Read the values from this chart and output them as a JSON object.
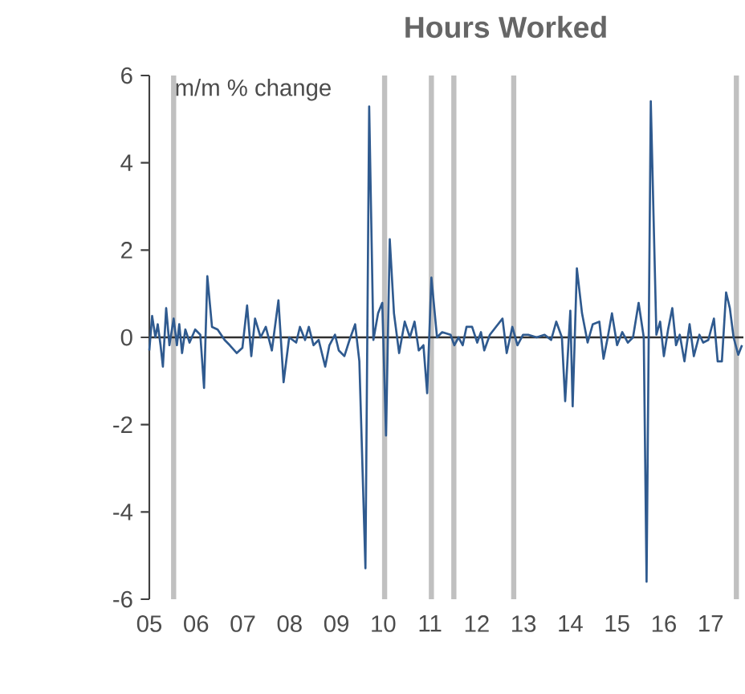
{
  "chart_data": {
    "type": "line",
    "title": "Hours Worked",
    "ylabel": "m/m % change",
    "xlim": [
      2005,
      2017.7
    ],
    "ylim": [
      -6,
      6
    ],
    "yticks": [
      -6,
      -4,
      -2,
      0,
      2,
      4,
      6
    ],
    "xticks": [
      {
        "value": 2005,
        "label": "05"
      },
      {
        "value": 2006,
        "label": "06"
      },
      {
        "value": 2007,
        "label": "07"
      },
      {
        "value": 2008,
        "label": "08"
      },
      {
        "value": 2009,
        "label": "09"
      },
      {
        "value": 2010,
        "label": "10"
      },
      {
        "value": 2011,
        "label": "11"
      },
      {
        "value": 2012,
        "label": "12"
      },
      {
        "value": 2013,
        "label": "13"
      },
      {
        "value": 2014,
        "label": "14"
      },
      {
        "value": 2015,
        "label": "15"
      },
      {
        "value": 2016,
        "label": "16"
      },
      {
        "value": 2017,
        "label": "17"
      }
    ],
    "grid": false,
    "marker": "none",
    "line_style": "solid",
    "ref_lines": [
      {
        "axis": "x",
        "value": 2005.52,
        "color": "#c0c0c0"
      },
      {
        "axis": "x",
        "value": 2010.03,
        "color": "#c0c0c0"
      },
      {
        "axis": "x",
        "value": 2011.03,
        "color": "#c0c0c0"
      },
      {
        "axis": "x",
        "value": 2011.51,
        "color": "#c0c0c0"
      },
      {
        "axis": "x",
        "value": 2012.79,
        "color": "#c0c0c0"
      },
      {
        "axis": "x",
        "value": 2017.55,
        "color": "#c0c0c0"
      },
      {
        "axis": "y",
        "value": 0,
        "color": "#303030"
      }
    ],
    "x": [
      2005.0,
      2005.06,
      2005.13,
      2005.18,
      2005.24,
      2005.29,
      2005.36,
      2005.43,
      2005.52,
      2005.59,
      2005.64,
      2005.7,
      2005.77,
      2005.86,
      2005.98,
      2006.09,
      2006.17,
      2006.24,
      2006.34,
      2006.46,
      2006.61,
      2006.72,
      2006.87,
      2006.99,
      2007.09,
      2007.18,
      2007.26,
      2007.38,
      2007.49,
      2007.62,
      2007.76,
      2007.87,
      2007.99,
      2008.14,
      2008.22,
      2008.33,
      2008.41,
      2008.51,
      2008.62,
      2008.76,
      2008.85,
      2008.97,
      2009.05,
      2009.17,
      2009.28,
      2009.4,
      2009.49,
      2009.62,
      2009.7,
      2009.79,
      2009.89,
      2009.98,
      2010.06,
      2010.14,
      2010.23,
      2010.34,
      2010.46,
      2010.57,
      2010.67,
      2010.76,
      2010.86,
      2010.94,
      2011.03,
      2011.15,
      2011.26,
      2011.44,
      2011.52,
      2011.61,
      2011.7,
      2011.78,
      2011.9,
      2012.01,
      2012.09,
      2012.16,
      2012.28,
      2012.41,
      2012.55,
      2012.64,
      2012.76,
      2012.87,
      2012.99,
      2013.1,
      2013.28,
      2013.45,
      2013.59,
      2013.7,
      2013.82,
      2013.89,
      2014.0,
      2014.05,
      2014.14,
      2014.25,
      2014.37,
      2014.48,
      2014.62,
      2014.71,
      2014.8,
      2014.89,
      2015.0,
      2015.11,
      2015.23,
      2015.34,
      2015.46,
      2015.57,
      2015.63,
      2015.72,
      2015.84,
      2015.92,
      2016.0,
      2016.09,
      2016.18,
      2016.26,
      2016.34,
      2016.44,
      2016.55,
      2016.64,
      2016.76,
      2016.84,
      2016.95,
      2017.07,
      2017.15,
      2017.24,
      2017.33,
      2017.41,
      2017.49,
      2017.59,
      2017.67
    ],
    "series": [
      {
        "color": "#2f5a8f",
        "values": [
          -0.3,
          0.49,
          0,
          0.3,
          -0.18,
          -0.67,
          0.67,
          -0.18,
          0.43,
          -0.18,
          0.3,
          -0.36,
          0.18,
          -0.12,
          0.18,
          0.06,
          -1.16,
          1.4,
          0.24,
          0.18,
          -0.06,
          -0.18,
          -0.36,
          -0.24,
          0.73,
          -0.43,
          0.43,
          0,
          0.24,
          -0.3,
          0.85,
          -1.03,
          0,
          -0.12,
          0.24,
          -0.06,
          0.24,
          -0.18,
          -0.06,
          -0.67,
          -0.18,
          0.06,
          -0.3,
          -0.43,
          -0.06,
          0.3,
          -0.55,
          -5.29,
          5.29,
          -0.06,
          0.55,
          0.79,
          -2.25,
          2.25,
          0.55,
          -0.36,
          0.36,
          0,
          0.36,
          -0.3,
          -0.18,
          -1.28,
          1.37,
          0,
          0.12,
          0.06,
          -0.18,
          0,
          -0.18,
          0.24,
          0.24,
          -0.12,
          0.12,
          -0.3,
          0.06,
          0.24,
          0.43,
          -0.36,
          0.24,
          -0.18,
          0.06,
          0.06,
          0,
          0.06,
          -0.06,
          0.36,
          0,
          -1.46,
          0.61,
          -1.58,
          1.58,
          0.55,
          -0.12,
          0.3,
          0.36,
          -0.49,
          0,
          0.55,
          -0.18,
          0.12,
          -0.12,
          0,
          0.79,
          0,
          -5.6,
          5.41,
          0.06,
          0.36,
          -0.43,
          0.18,
          0.67,
          -0.18,
          0.06,
          -0.55,
          0.3,
          -0.43,
          0.06,
          -0.12,
          -0.06,
          0.43,
          -0.55,
          -0.55,
          1.03,
          0.67,
          0,
          -0.4,
          -0.18
        ]
      }
    ]
  }
}
